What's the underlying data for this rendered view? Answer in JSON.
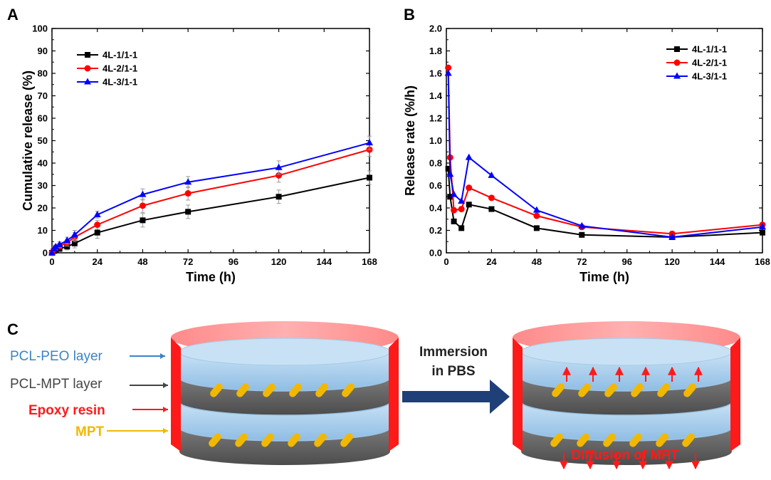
{
  "chart_data": [
    {
      "panel": "A",
      "type": "line",
      "xlabel": "Time (h)",
      "ylabel": "Cumulative release (%)",
      "xlim": [
        0,
        168
      ],
      "ylim": [
        0,
        100
      ],
      "xticks": [
        "0",
        "24",
        "48",
        "72",
        "96",
        "120",
        "144",
        "168"
      ],
      "yticks": [
        "0",
        "10",
        "20",
        "30",
        "40",
        "50",
        "60",
        "70",
        "80",
        "90",
        "100"
      ],
      "grid": false,
      "legend_position": "top-left",
      "x": [
        0,
        1,
        2,
        4,
        8,
        12,
        24,
        48,
        72,
        120,
        168
      ],
      "series": [
        {
          "name": "4L-1/1-1",
          "color": "#000000",
          "marker": "square",
          "values": [
            0,
            0.8,
            1.2,
            1.8,
            2.8,
            4.2,
            9,
            14.5,
            18.3,
            25,
            33.5
          ],
          "errors": [
            0.5,
            0.8,
            1,
            1.2,
            1.5,
            2,
            2.5,
            3,
            3,
            3,
            3
          ]
        },
        {
          "name": "4L-2/1-1",
          "color": "#ff0000",
          "marker": "circle",
          "values": [
            0,
            1.5,
            2.2,
            3,
            4.5,
            7,
            12.5,
            21,
            26.5,
            34.5,
            46
          ],
          "errors": [
            0.5,
            0.8,
            1,
            1.2,
            1.5,
            2,
            2,
            3,
            3,
            3,
            3
          ]
        },
        {
          "name": "4L-3/1-1",
          "color": "#0000ff",
          "marker": "triangle",
          "values": [
            0,
            1.8,
            2.7,
            3.7,
            5.5,
            8,
            17,
            26,
            31.5,
            38,
            49
          ],
          "errors": [
            0.5,
            0.8,
            1,
            1.2,
            1.5,
            2,
            1.5,
            2.5,
            2.5,
            3,
            3
          ]
        }
      ]
    },
    {
      "panel": "B",
      "type": "line",
      "xlabel": "Time (h)",
      "ylabel": "Release rate (%/h)",
      "xlim": [
        0,
        168
      ],
      "ylim": [
        0,
        2.0
      ],
      "xticks": [
        "0",
        "24",
        "48",
        "72",
        "96",
        "120",
        "144",
        "168"
      ],
      "yticks": [
        "0.0",
        "0.2",
        "0.4",
        "0.6",
        "0.8",
        "1.0",
        "1.2",
        "1.4",
        "1.6",
        "1.8",
        "2.0"
      ],
      "grid": false,
      "legend_position": "top-right",
      "x": [
        1,
        2,
        4,
        8,
        12,
        24,
        48,
        72,
        120,
        168
      ],
      "series": [
        {
          "name": "4L-1/1-1",
          "color": "#000000",
          "marker": "square",
          "values": [
            0.75,
            0.5,
            0.28,
            0.22,
            0.43,
            0.39,
            0.22,
            0.16,
            0.14,
            0.18
          ]
        },
        {
          "name": "4L-2/1-1",
          "color": "#ff0000",
          "marker": "circle",
          "values": [
            1.65,
            0.85,
            0.38,
            0.39,
            0.58,
            0.49,
            0.33,
            0.23,
            0.17,
            0.25
          ]
        },
        {
          "name": "4L-3/1-1",
          "color": "#0000ff",
          "marker": "triangle",
          "values": [
            1.6,
            0.7,
            0.52,
            0.46,
            0.85,
            0.69,
            0.38,
            0.24,
            0.14,
            0.23
          ]
        }
      ]
    }
  ],
  "panel_labels": {
    "a": "A",
    "b": "B",
    "c": "C"
  },
  "diagram": {
    "labels": {
      "pcl_peo": "PCL-PEO layer",
      "pcl_mpt": "PCL-MPT layer",
      "epoxy": "Epoxy resin",
      "mpt": "MPT"
    },
    "process_line1": "Immersion",
    "process_line2": "in PBS",
    "result": "Diffusion of MPT",
    "colors": {
      "pcl_peo": "#3b83c9",
      "pcl_mpt": "#444444",
      "epoxy": "#ff1a1a",
      "mpt": "#f2b800",
      "arrow": "#1f3f78"
    }
  }
}
